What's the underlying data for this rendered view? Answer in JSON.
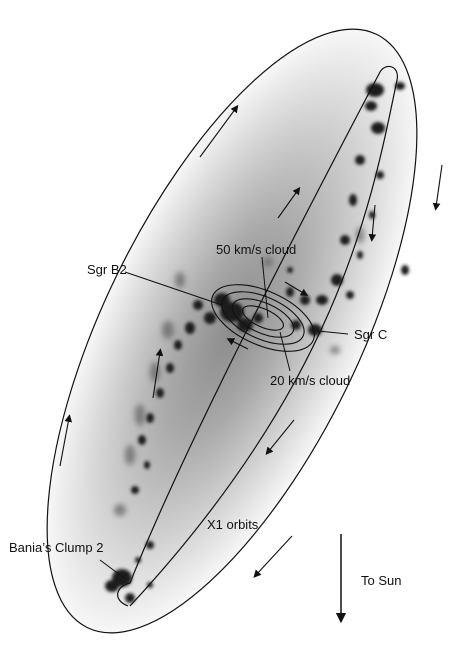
{
  "labels": {
    "cloud_50": "50 km/s cloud",
    "sgr_b2": "Sgr B2",
    "sgr_c": "Sgr C",
    "cloud_20": "20 km/s cloud",
    "x1_orbits": "X1 orbits",
    "bania_clump": "Bania’s Clump 2",
    "to_sun": "To Sun"
  },
  "colors": {
    "background": "#ffffff",
    "glow_center": "#8c8c8c",
    "glow_mid": "#c4c4c4",
    "glow_edge": "#f7f7f7",
    "clouds": "#1f1f1f",
    "lines": "#111111"
  }
}
